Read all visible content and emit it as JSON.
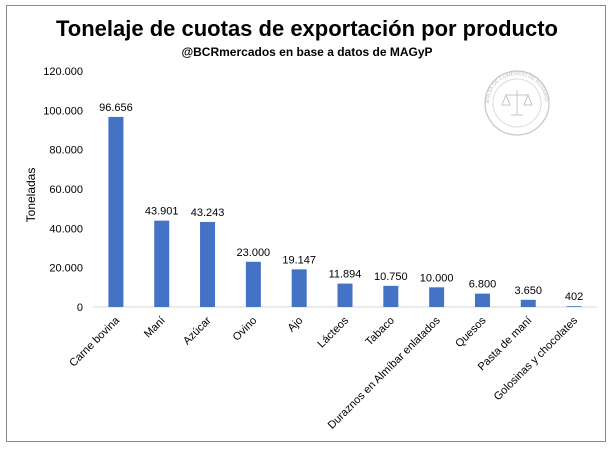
{
  "chart_data": {
    "type": "bar",
    "title": "Tonelaje de cuotas de exportación por producto",
    "subtitle": "@BCRmercados  en base a datos de MAGyP",
    "xlabel": "",
    "ylabel": "Toneladas",
    "ylim": [
      0,
      120000
    ],
    "yticks": [
      0,
      20000,
      40000,
      60000,
      80000,
      100000,
      120000
    ],
    "ytick_labels": [
      "0",
      "20.000",
      "40.000",
      "60.000",
      "80.000",
      "100.000",
      "120.000"
    ],
    "grid": false,
    "legend": "none",
    "bar_color": "#4472c4",
    "categories": [
      "Carne bovina",
      "Maní",
      "Azúcar",
      "Ovino",
      "Ajo",
      "Lácteos",
      "Tabaco",
      "Duraznos en Almíbar enlatados",
      "Quesos",
      "Pasta de maní",
      "Golosinas y chocolates"
    ],
    "values": [
      96656,
      43901,
      43243,
      23000,
      19147,
      11894,
      10750,
      10000,
      6800,
      3650,
      402
    ],
    "data_labels": [
      "96.656",
      "43.901",
      "43.243",
      "23.000",
      "19.147",
      "11.894",
      "10.750",
      "10.000",
      "6.800",
      "3.650",
      "402"
    ]
  },
  "watermark": {
    "type": "seal",
    "text": "BOLSA DE COMERCIO DE ROSARIO",
    "color": "#b8b8c4"
  }
}
